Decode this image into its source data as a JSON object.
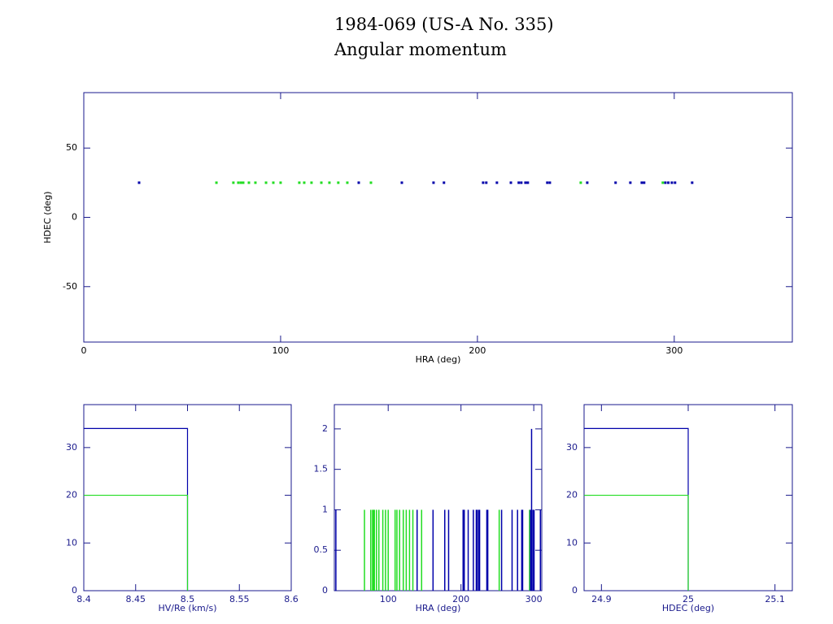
{
  "title": "1984-069 (US-A No. 335)",
  "subtitle": "Angular momentum",
  "chart_data": [
    {
      "type": "scatter",
      "xlabel": "HRA (deg)",
      "ylabel": "HDEC (deg)",
      "xlim": [
        0,
        360
      ],
      "ylim": [
        -90,
        90
      ],
      "xticks": [
        0,
        100,
        200,
        300
      ],
      "yticks": [
        -50,
        0,
        50
      ],
      "series": [
        {
          "color": "#22dd22",
          "x": [
            67.4,
            76,
            78.5,
            79.8,
            81,
            83.9,
            87.2,
            92.6,
            96.3,
            100,
            109.5,
            112,
            115.7,
            120.7,
            124.8,
            129.3,
            133.9,
            145.9,
            252.5,
            294.2
          ],
          "values": [
            25,
            25,
            25,
            25,
            25,
            25,
            25,
            25,
            25,
            25,
            25,
            25,
            25,
            25,
            25,
            25,
            25,
            25,
            25,
            25
          ]
        },
        {
          "color": "#0000aa",
          "x": [
            28.1,
            139.7,
            161.6,
            177.7,
            183,
            202.9,
            204.5,
            209.9,
            217,
            221,
            222.3,
            224.4,
            225.6,
            235.5,
            236.8,
            255.8,
            270.2,
            277.7,
            283.5,
            284.7,
            295.5,
            297,
            298.8,
            300.4,
            309.1
          ],
          "values": [
            25,
            25,
            25,
            25,
            25,
            25,
            25,
            25,
            25,
            25,
            25,
            25,
            25,
            25,
            25,
            25,
            25,
            25,
            25,
            25,
            25,
            25,
            25,
            25,
            25
          ]
        }
      ]
    },
    {
      "type": "histogram",
      "xlabel": "HV/Re (km/s)",
      "xlim": [
        8.4,
        8.6
      ],
      "ylim": [
        0,
        39
      ],
      "xticks": [
        8.4,
        8.45,
        8.5,
        8.55,
        8.6
      ],
      "yticks": [
        0,
        10,
        20,
        30
      ],
      "series": [
        {
          "color": "#0000aa",
          "bins": [
            8.4,
            8.5
          ],
          "values": [
            34
          ]
        },
        {
          "color": "#22dd22",
          "bins": [
            8.4,
            8.5
          ],
          "values": [
            20
          ]
        }
      ]
    },
    {
      "type": "spikes",
      "xlabel": "HRA (deg)",
      "xlim": [
        26,
        311
      ],
      "ylim": [
        0,
        2.3
      ],
      "xticks": [
        100,
        200,
        300
      ],
      "yticks": [
        0,
        0.5,
        1,
        1.5,
        2
      ],
      "series": [
        {
          "color": "#22dd22",
          "x": [
            67.4,
            76,
            78.5,
            79.8,
            81,
            83.9,
            87.2,
            92.6,
            96.3,
            100,
            109.5,
            112,
            115.7,
            120.7,
            124.8,
            129.3,
            133.9,
            145.9,
            252.5,
            294.2
          ],
          "values": [
            1,
            1,
            1,
            1,
            1,
            1,
            1,
            1,
            1,
            1,
            1,
            1,
            1,
            1,
            1,
            1,
            1,
            1,
            1,
            1
          ]
        },
        {
          "color": "#0000aa",
          "x": [
            28.1,
            139.7,
            161.6,
            177.7,
            183,
            202.9,
            204.5,
            209.9,
            217,
            221,
            222.3,
            224.4,
            225.6,
            235.5,
            236.8,
            255.8,
            270.2,
            277.7,
            283.5,
            284.7,
            295.5,
            297,
            298.8,
            300.4,
            309.1
          ],
          "values": [
            1,
            1,
            1,
            1,
            1,
            1,
            1,
            1,
            1,
            1,
            1,
            1,
            1,
            1,
            1,
            1,
            1,
            1,
            1,
            1,
            1,
            2,
            1,
            1,
            1
          ]
        }
      ]
    },
    {
      "type": "histogram",
      "xlabel": "HDEC (deg)",
      "xlim": [
        24.88,
        25.12
      ],
      "ylim": [
        0,
        39
      ],
      "xticks": [
        24.9,
        25,
        25.1
      ],
      "yticks": [
        0,
        10,
        20,
        30
      ],
      "series": [
        {
          "color": "#0000aa",
          "bins": [
            24.88,
            25
          ],
          "values": [
            34
          ]
        },
        {
          "color": "#22dd22",
          "bins": [
            24.88,
            25
          ],
          "values": [
            20
          ]
        }
      ]
    }
  ]
}
